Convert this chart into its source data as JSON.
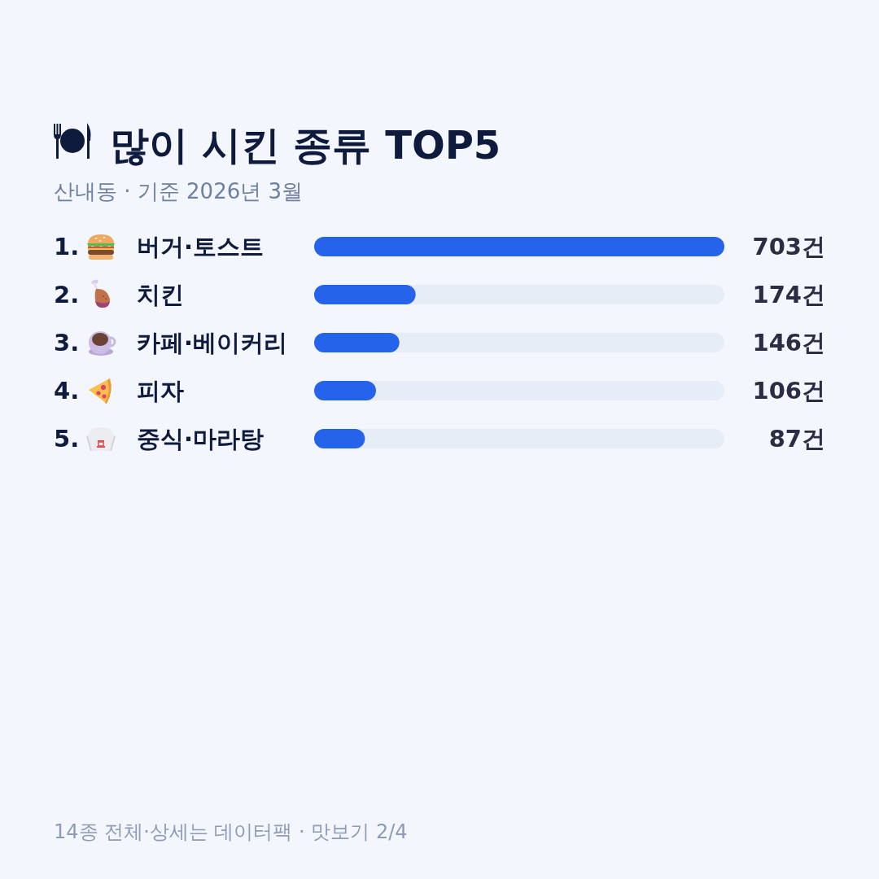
{
  "chart_data": {
    "type": "bar",
    "orientation": "horizontal",
    "title": "많이 시킨 종류 TOP5",
    "subtitle": "산내동 · 기준 2026년 3월",
    "categories": [
      "1. 버거·토스트",
      "2. 치킨",
      "3. 카페·베이커리",
      "4. 피자",
      "5. 중식·마라탕"
    ],
    "values": [
      703,
      174,
      146,
      106,
      87
    ],
    "value_labels": [
      "703건",
      "174건",
      "146건",
      "106건",
      "87건"
    ],
    "color": "#2563eb",
    "xlim": [
      0,
      703
    ],
    "tick_labels": "y",
    "annotations": [
      "14종 전체·상세는 데이터팩 · 맛보기 2/4"
    ]
  }
}
